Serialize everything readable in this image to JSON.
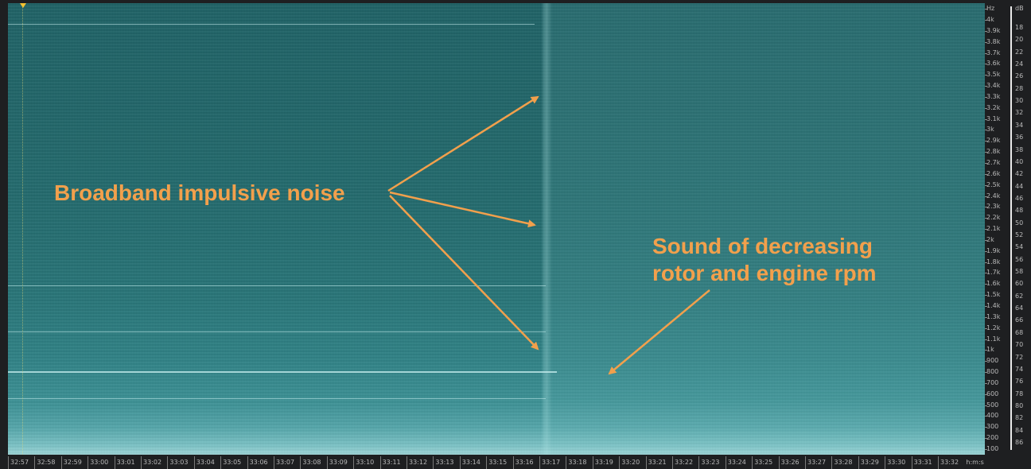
{
  "freq_axis": {
    "unit_label": "Hz",
    "labels": [
      "4k",
      "3.9k",
      "3.8k",
      "3.7k",
      "3.6k",
      "3.5k",
      "3.4k",
      "3.3k",
      "3.2k",
      "3.1k",
      "3k",
      "2.9k",
      "2.8k",
      "2.7k",
      "2.6k",
      "2.5k",
      "2.4k",
      "2.3k",
      "2.2k",
      "2.1k",
      "2k",
      "1.9k",
      "1.8k",
      "1.7k",
      "1.6k",
      "1.5k",
      "1.4k",
      "1.3k",
      "1.2k",
      "1.1k",
      "1k",
      "900",
      "800",
      "700",
      "600",
      "500",
      "400",
      "300",
      "200",
      "100"
    ]
  },
  "db_axis": {
    "unit_label": "dB",
    "labels": [
      "18",
      "20",
      "22",
      "24",
      "26",
      "28",
      "30",
      "32",
      "34",
      "36",
      "38",
      "40",
      "42",
      "44",
      "46",
      "48",
      "50",
      "52",
      "54",
      "56",
      "58",
      "60",
      "62",
      "64",
      "66",
      "68",
      "70",
      "72",
      "74",
      "76",
      "78",
      "80",
      "82",
      "84",
      "86"
    ]
  },
  "time_axis": {
    "labels": [
      "32:57",
      "32:58",
      "32:59",
      "33:00",
      "33:01",
      "33:02",
      "33:03",
      "33:04",
      "33:05",
      "33:06",
      "33:07",
      "33:08",
      "33:09",
      "33:10",
      "33:11",
      "33:12",
      "33:13",
      "33:14",
      "33:15",
      "33:16",
      "33:17",
      "33:18",
      "33:19",
      "33:20",
      "33:21",
      "33:22",
      "33:23",
      "33:24",
      "33:25",
      "33:26",
      "33:27",
      "33:28",
      "33:29",
      "33:30",
      "33:31",
      "33:32"
    ],
    "unit_label": "h:m:s"
  },
  "annotations": {
    "broadband": "Broadband impulsive noise",
    "rotor_line1": "Sound  of  decreasing",
    "rotor_line2": "rotor and engine rpm"
  },
  "colors": {
    "annotation": "#f2a04c",
    "playhead_marker": "#f3c332",
    "spectrogram_base": "#216669"
  }
}
